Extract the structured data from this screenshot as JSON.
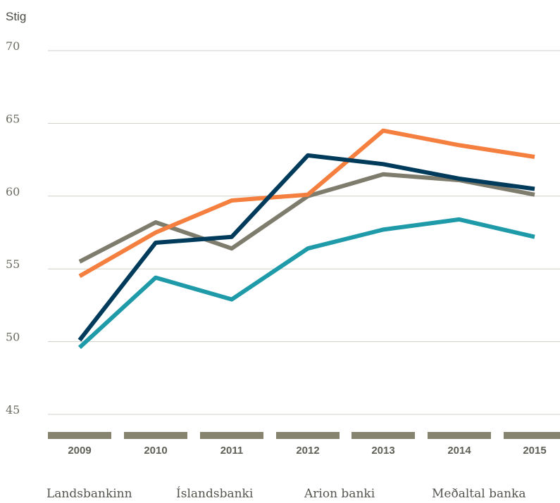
{
  "chart_data": {
    "type": "line",
    "ylabel": "Stig",
    "xlabel": "",
    "title": "",
    "ylim": [
      45,
      70
    ],
    "yticks": [
      70,
      65,
      60,
      55,
      50,
      45
    ],
    "categories": [
      "2009",
      "2010",
      "2011",
      "2012",
      "2013",
      "2014",
      "2015"
    ],
    "grid": true,
    "legend_position": "bottom",
    "series": [
      {
        "name": "Landsbankinn",
        "color": "#003b5c",
        "values": [
          50.1,
          56.8,
          57.2,
          62.8,
          62.2,
          61.2,
          60.5
        ]
      },
      {
        "name": "Íslandsbanki",
        "color": "#f47f3f",
        "values": [
          54.5,
          57.5,
          59.7,
          60.1,
          64.5,
          63.5,
          62.7
        ]
      },
      {
        "name": "Arion banki",
        "color": "#1e9aa9",
        "values": [
          49.6,
          54.4,
          52.9,
          56.4,
          57.7,
          58.4,
          57.2
        ]
      },
      {
        "name": "Meðaltal banka",
        "color": "#7e7c6c",
        "values": [
          55.5,
          58.2,
          56.4,
          60.0,
          61.5,
          61.1,
          60.1
        ]
      }
    ]
  }
}
